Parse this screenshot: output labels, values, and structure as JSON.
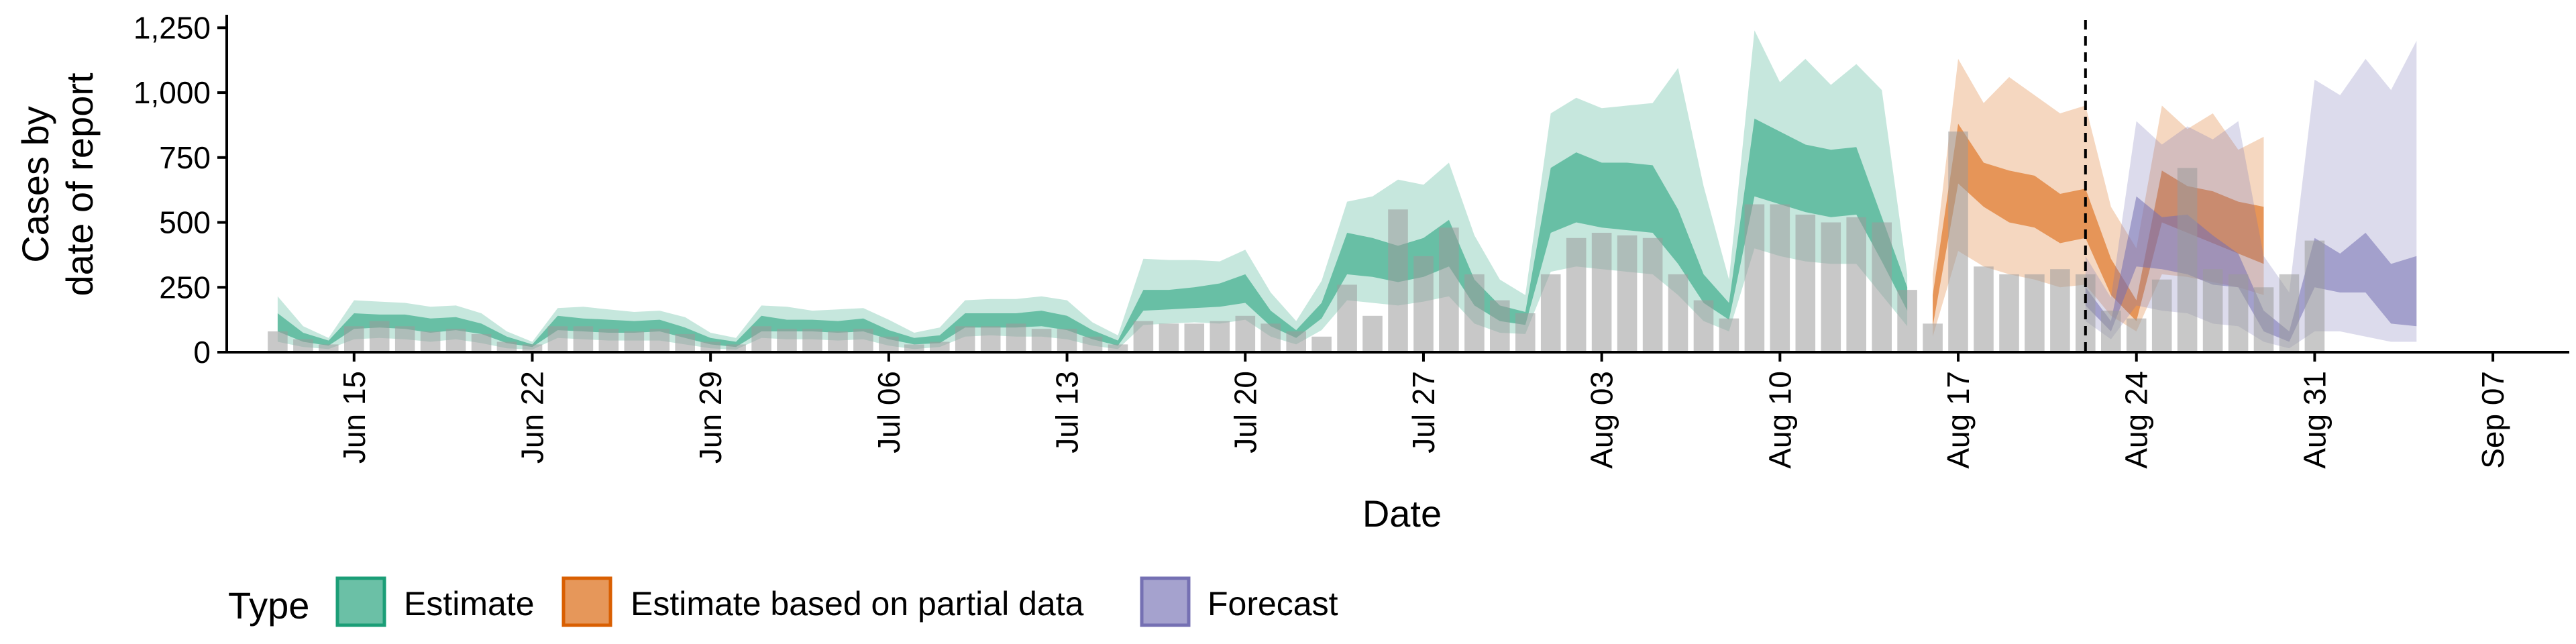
{
  "chart_data": {
    "type": "area",
    "xlabel": "Date",
    "ylabel_lines": [
      "Cases by",
      "date of report"
    ],
    "ylim": [
      0,
      1300
    ],
    "y_ticks": [
      0,
      250,
      500,
      750,
      1000,
      1250
    ],
    "y_tick_labels": [
      "0",
      "250",
      "500",
      "750",
      "1,000",
      "1,250"
    ],
    "x_start": "2020-06-10",
    "x_end": "2020-09-10",
    "x_ticks": [
      "2020-06-15",
      "2020-06-22",
      "2020-06-29",
      "2020-07-06",
      "2020-07-13",
      "2020-07-20",
      "2020-07-27",
      "2020-08-03",
      "2020-08-10",
      "2020-08-17",
      "2020-08-24",
      "2020-08-31",
      "2020-09-07"
    ],
    "x_tick_labels": [
      "Jun 15",
      "Jun 22",
      "Jun 29",
      "Jul 06",
      "Jul 13",
      "Jul 20",
      "Jul 27",
      "Aug 03",
      "Aug 10",
      "Aug 17",
      "Aug 24",
      "Aug 31",
      "Sep 07"
    ],
    "forecast_start": "2020-08-22",
    "legend": {
      "title": "Type",
      "position": "bottom",
      "items": [
        {
          "label": "Estimate",
          "color": "#1b9e77"
        },
        {
          "label": "Estimate based on partial data",
          "color": "#d95f02"
        },
        {
          "label": "Forecast",
          "color": "#7570b3"
        }
      ]
    },
    "reported_cases": {
      "start": "2020-06-12",
      "values": [
        80,
        50,
        30,
        100,
        120,
        100,
        80,
        90,
        70,
        40,
        30,
        100,
        100,
        90,
        80,
        90,
        70,
        40,
        30,
        100,
        90,
        90,
        80,
        90,
        60,
        30,
        40,
        100,
        100,
        110,
        90,
        90,
        60,
        30,
        120,
        110,
        110,
        120,
        140,
        110,
        80,
        60,
        260,
        140,
        550,
        370,
        480,
        300,
        200,
        150,
        300,
        440,
        460,
        450,
        440,
        300,
        200,
        130,
        570,
        570,
        530,
        500,
        520,
        500,
        240,
        110,
        850,
        330,
        300,
        300,
        320,
        300,
        160,
        130,
        280,
        710,
        320,
        300,
        250,
        300,
        430
      ]
    },
    "series": [
      {
        "name": "Estimate",
        "start": "2020-06-12",
        "upper90": [
          215,
          100,
          55,
          200,
          195,
          190,
          175,
          180,
          150,
          80,
          40,
          170,
          175,
          165,
          155,
          160,
          135,
          75,
          55,
          180,
          175,
          160,
          165,
          170,
          125,
          75,
          95,
          200,
          205,
          205,
          215,
          200,
          115,
          65,
          360,
          355,
          355,
          350,
          395,
          230,
          120,
          275,
          580,
          600,
          665,
          645,
          730,
          450,
          280,
          220,
          920,
          980,
          940,
          950,
          960,
          1095,
          640,
          280,
          1240,
          1040,
          1130,
          1030,
          1110,
          1010,
          300
        ],
        "upper50": [
          150,
          75,
          45,
          150,
          145,
          145,
          130,
          135,
          110,
          60,
          30,
          140,
          130,
          125,
          120,
          125,
          95,
          55,
          40,
          140,
          125,
          125,
          120,
          130,
          85,
          55,
          65,
          150,
          150,
          150,
          160,
          140,
          85,
          45,
          240,
          240,
          250,
          265,
          300,
          160,
          85,
          190,
          460,
          440,
          410,
          440,
          510,
          280,
          180,
          155,
          710,
          770,
          730,
          730,
          720,
          550,
          300,
          190,
          900,
          850,
          800,
          780,
          790,
          520,
          250
        ],
        "median": [
          110,
          55,
          35,
          120,
          120,
          110,
          100,
          110,
          90,
          45,
          25,
          110,
          100,
          100,
          95,
          100,
          75,
          40,
          30,
          105,
          100,
          100,
          95,
          100,
          65,
          40,
          50,
          120,
          120,
          120,
          125,
          110,
          65,
          35,
          200,
          200,
          205,
          220,
          240,
          130,
          70,
          160,
          380,
          360,
          330,
          360,
          410,
          220,
          150,
          130,
          580,
          640,
          620,
          610,
          600,
          440,
          240,
          160,
          760,
          720,
          680,
          660,
          680,
          440,
          200
        ],
        "lower50": [
          80,
          40,
          25,
          90,
          95,
          90,
          75,
          85,
          70,
          35,
          20,
          85,
          80,
          75,
          75,
          80,
          55,
          30,
          20,
          80,
          80,
          80,
          75,
          80,
          50,
          30,
          35,
          95,
          95,
          95,
          100,
          85,
          50,
          25,
          160,
          165,
          170,
          175,
          190,
          100,
          55,
          130,
          300,
          290,
          270,
          290,
          330,
          180,
          120,
          105,
          460,
          500,
          480,
          470,
          460,
          340,
          190,
          125,
          600,
          570,
          540,
          520,
          530,
          350,
          160
        ],
        "lower90": [
          40,
          20,
          12,
          50,
          55,
          50,
          40,
          50,
          35,
          15,
          10,
          55,
          50,
          45,
          45,
          45,
          30,
          15,
          10,
          55,
          50,
          50,
          45,
          50,
          25,
          12,
          20,
          60,
          65,
          60,
          60,
          50,
          25,
          12,
          105,
          110,
          115,
          110,
          125,
          60,
          30,
          85,
          200,
          190,
          180,
          195,
          215,
          110,
          75,
          70,
          310,
          330,
          320,
          310,
          300,
          220,
          120,
          80,
          400,
          370,
          350,
          340,
          340,
          220,
          100
        ]
      },
      {
        "name": "Estimate based on partial data",
        "start": "2020-08-16",
        "upper90": [
          300,
          1130,
          960,
          1060,
          990,
          920,
          950,
          560,
          400,
          950,
          860,
          920,
          780,
          830
        ],
        "upper50": [
          220,
          880,
          730,
          700,
          680,
          610,
          630,
          360,
          200,
          700,
          640,
          620,
          580,
          560
        ],
        "median": [
          150,
          810,
          640,
          580,
          560,
          480,
          510,
          260,
          160,
          590,
          540,
          500,
          460,
          440
        ],
        "lower50": [
          100,
          650,
          560,
          500,
          480,
          420,
          440,
          220,
          120,
          500,
          460,
          420,
          380,
          340
        ],
        "lower90": [
          60,
          390,
          330,
          300,
          280,
          250,
          260,
          140,
          80,
          300,
          290,
          270,
          250,
          220
        ]
      },
      {
        "name": "Forecast",
        "start": "2020-08-22",
        "upper90": [
          370,
          210,
          890,
          800,
          870,
          820,
          890,
          370,
          230,
          1050,
          990,
          1130,
          1010,
          1200
        ],
        "upper50": [
          250,
          120,
          600,
          520,
          530,
          450,
          380,
          160,
          80,
          440,
          380,
          460,
          340,
          370
        ],
        "median": [
          200,
          100,
          480,
          430,
          430,
          370,
          310,
          120,
          60,
          340,
          300,
          370,
          270,
          270
        ],
        "lower50": [
          180,
          80,
          330,
          320,
          300,
          260,
          250,
          80,
          40,
          250,
          230,
          230,
          110,
          100
        ],
        "lower90": [
          120,
          50,
          180,
          160,
          150,
          110,
          100,
          40,
          15,
          80,
          80,
          60,
          40,
          40
        ]
      }
    ]
  }
}
